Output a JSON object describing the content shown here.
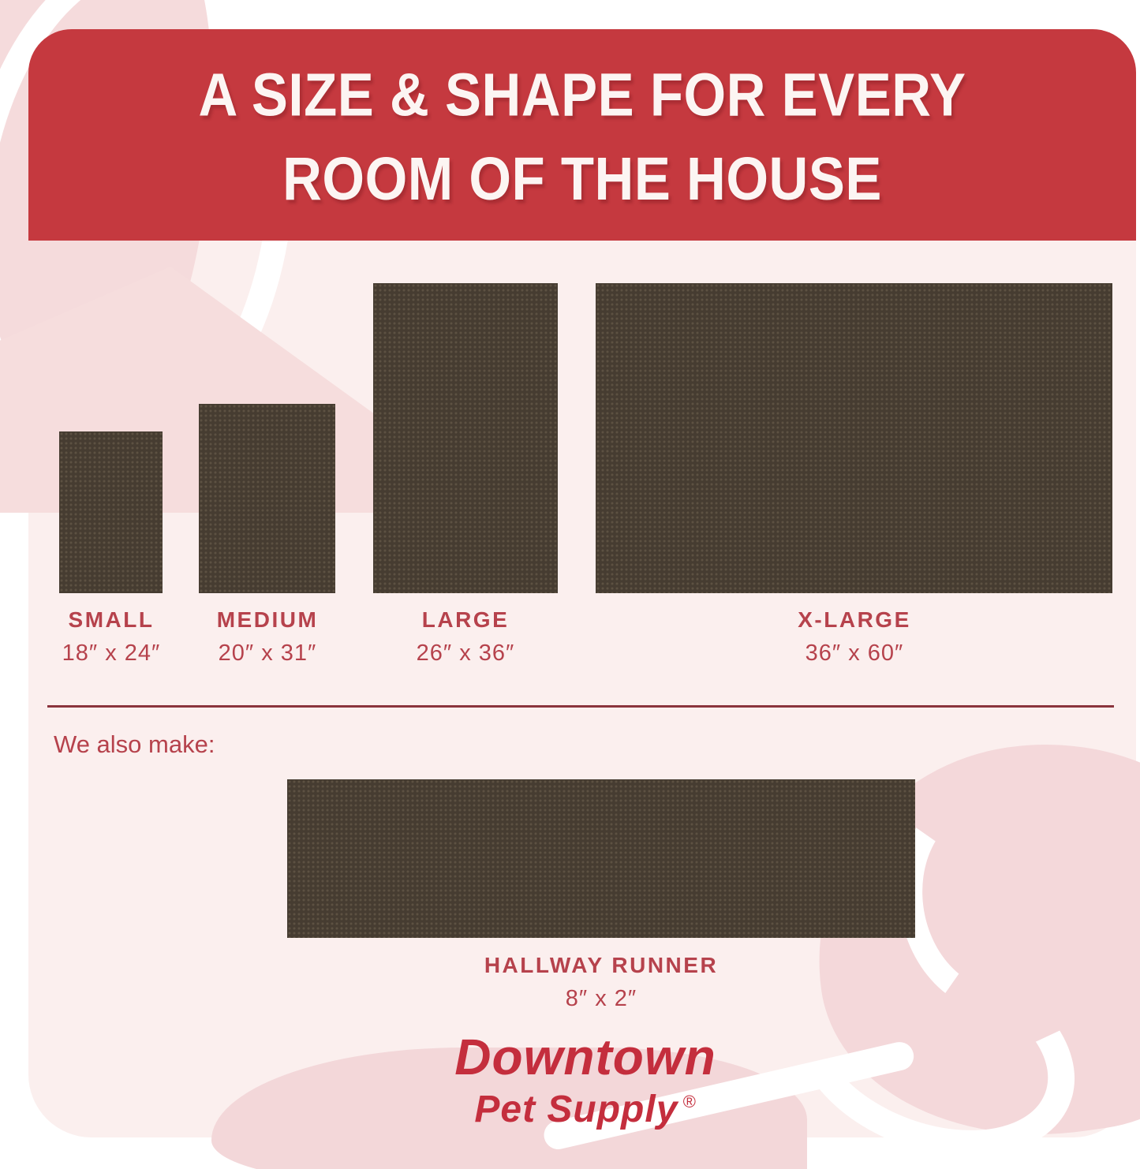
{
  "header": {
    "title_line1": "A SIZE & SHAPE FOR EVERY",
    "title_line2": "ROOM OF THE HOUSE"
  },
  "sizes": [
    {
      "name": "SMALL",
      "dimensions": "18″ x 24″"
    },
    {
      "name": "MEDIUM",
      "dimensions": "20″ x 31″"
    },
    {
      "name": "LARGE",
      "dimensions": "26″ x 36″"
    },
    {
      "name": "X-LARGE",
      "dimensions": "36″ x 60″"
    }
  ],
  "also_make_label": "We also make:",
  "runner": {
    "name": "HALLWAY RUNNER",
    "dimensions": "8″ x 2″"
  },
  "brand": {
    "name": "Downtown",
    "subtitle": "Pet Supply",
    "registered_mark": "®"
  },
  "colors": {
    "banner_red": "#c5393f",
    "label_red": "#b6424c",
    "rug_brown": "#463c31",
    "logo_red": "#c42e3d",
    "panel_pink": "#fbefee",
    "blob_pink": "#f4d8da",
    "divider_maroon": "#8b343d"
  }
}
